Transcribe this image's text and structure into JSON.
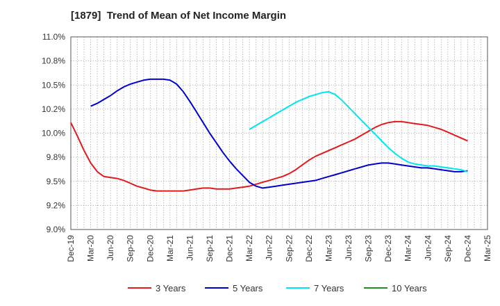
{
  "chart_data": {
    "type": "line",
    "title": "[1879]  Trend of Mean of Net Income Margin",
    "xlabel": "",
    "ylabel": "",
    "x_ticks": [
      "Dec-19",
      "Mar-20",
      "Jun-20",
      "Sep-20",
      "Dec-20",
      "Mar-21",
      "Jun-21",
      "Sep-21",
      "Dec-21",
      "Mar-22",
      "Jun-22",
      "Sep-22",
      "Dec-22",
      "Mar-23",
      "Jun-23",
      "Sep-23",
      "Dec-23",
      "Mar-24",
      "Jun-24",
      "Sep-24",
      "Dec-24",
      "Mar-25"
    ],
    "y_ticks": [
      "9.0%",
      "9.2%",
      "9.5%",
      "9.8%",
      "10.0%",
      "10.2%",
      "10.5%",
      "10.8%",
      "11.0%"
    ],
    "ylim": [
      9.0,
      11.0
    ],
    "grid": true,
    "legend_position": "bottom",
    "series": [
      {
        "name": "3 Years",
        "color": "#e31a1c",
        "points": [
          [
            "Dec-19",
            10.11
          ],
          [
            "Jan-20",
            9.97
          ],
          [
            "Feb-20",
            9.82
          ],
          [
            "Mar-20",
            9.69
          ],
          [
            "Apr-20",
            9.6
          ],
          [
            "May-20",
            9.55
          ],
          [
            "Jun-20",
            9.54
          ],
          [
            "Jul-20",
            9.53
          ],
          [
            "Aug-20",
            9.51
          ],
          [
            "Sep-20",
            9.48
          ],
          [
            "Oct-20",
            9.45
          ],
          [
            "Nov-20",
            9.43
          ],
          [
            "Dec-20",
            9.41
          ],
          [
            "Jan-21",
            9.4
          ],
          [
            "Feb-21",
            9.4
          ],
          [
            "Mar-21",
            9.4
          ],
          [
            "Apr-21",
            9.4
          ],
          [
            "May-21",
            9.4
          ],
          [
            "Jun-21",
            9.41
          ],
          [
            "Jul-21",
            9.42
          ],
          [
            "Aug-21",
            9.43
          ],
          [
            "Sep-21",
            9.43
          ],
          [
            "Oct-21",
            9.42
          ],
          [
            "Nov-21",
            9.42
          ],
          [
            "Dec-21",
            9.42
          ],
          [
            "Jan-22",
            9.43
          ],
          [
            "Feb-22",
            9.44
          ],
          [
            "Mar-22",
            9.45
          ],
          [
            "Apr-22",
            9.47
          ],
          [
            "May-22",
            9.49
          ],
          [
            "Jun-22",
            9.51
          ],
          [
            "Jul-22",
            9.53
          ],
          [
            "Aug-22",
            9.55
          ],
          [
            "Sep-22",
            9.58
          ],
          [
            "Oct-22",
            9.62
          ],
          [
            "Nov-22",
            9.67
          ],
          [
            "Dec-22",
            9.72
          ],
          [
            "Jan-23",
            9.76
          ],
          [
            "Feb-23",
            9.79
          ],
          [
            "Mar-23",
            9.82
          ],
          [
            "Apr-23",
            9.85
          ],
          [
            "May-23",
            9.88
          ],
          [
            "Jun-23",
            9.91
          ],
          [
            "Jul-23",
            9.94
          ],
          [
            "Aug-23",
            9.98
          ],
          [
            "Sep-23",
            10.02
          ],
          [
            "Oct-23",
            10.06
          ],
          [
            "Nov-23",
            10.09
          ],
          [
            "Dec-23",
            10.11
          ],
          [
            "Jan-24",
            10.12
          ],
          [
            "Feb-24",
            10.12
          ],
          [
            "Mar-24",
            10.11
          ],
          [
            "Apr-24",
            10.1
          ],
          [
            "May-24",
            10.09
          ],
          [
            "Jun-24",
            10.08
          ],
          [
            "Jul-24",
            10.06
          ],
          [
            "Aug-24",
            10.04
          ],
          [
            "Sep-24",
            10.01
          ],
          [
            "Oct-24",
            9.98
          ],
          [
            "Nov-24",
            9.95
          ],
          [
            "Dec-24",
            9.92
          ]
        ]
      },
      {
        "name": "5 Years",
        "color": "#0000cc",
        "points": [
          [
            "Dec-19",
            null
          ],
          [
            "Jan-20",
            null
          ],
          [
            "Feb-20",
            null
          ],
          [
            "Mar-20",
            null
          ],
          [
            "Apr-20",
            null
          ],
          [
            "May-20",
            null
          ],
          [
            "Jun-20",
            null
          ],
          [
            "Jul-20",
            null
          ],
          [
            "Aug-20",
            null
          ],
          [
            "Sep-20",
            null
          ],
          [
            "Oct-20",
            null
          ],
          [
            "Nov-20",
            null
          ],
          [
            "Dec-20",
            null
          ],
          [
            "Jan-21",
            null
          ],
          [
            "Feb-21",
            null
          ],
          [
            "Mar-21",
            null
          ],
          [
            "Apr-21",
            null
          ],
          [
            "May-21",
            null
          ],
          [
            "Jun-21",
            null
          ],
          [
            "Jul-21",
            null
          ],
          [
            "Aug-21",
            null
          ],
          [
            "Sep-21",
            null
          ],
          [
            "Oct-21",
            null
          ],
          [
            "Nov-21",
            null
          ],
          [
            "Dec-21",
            null
          ],
          [
            "Jan-22",
            null
          ],
          [
            "Feb-22",
            null
          ],
          [
            "Mar-22",
            null
          ],
          [
            "Apr-22",
            null
          ],
          [
            "May-22",
            null
          ],
          [
            "Jun-22",
            null
          ],
          [
            "Jul-22",
            null
          ],
          [
            "Aug-22",
            null
          ],
          [
            "Sep-22",
            null
          ],
          [
            "Oct-22",
            null
          ],
          [
            "Nov-22",
            null
          ],
          [
            "Dec-22",
            null
          ],
          [
            "Jan-23",
            null
          ],
          [
            "Feb-23",
            null
          ],
          [
            "Mar-23",
            null
          ],
          [
            "Apr-23",
            null
          ],
          [
            "May-23",
            null
          ],
          [
            "Jun-23",
            null
          ],
          [
            "Jul-23",
            null
          ],
          [
            "Aug-23",
            null
          ],
          [
            "Sep-23",
            null
          ],
          [
            "Oct-23",
            null
          ],
          [
            "Nov-23",
            null
          ],
          [
            "Dec-23",
            null
          ],
          [
            "Jan-24",
            null
          ],
          [
            "Feb-24",
            null
          ],
          [
            "Mar-24",
            null
          ],
          [
            "Apr-24",
            null
          ],
          [
            "May-24",
            null
          ],
          [
            "Jun-24",
            null
          ],
          [
            "Jul-24",
            null
          ],
          [
            "Aug-24",
            null
          ],
          [
            "Sep-24",
            null
          ],
          [
            "Oct-24",
            null
          ],
          [
            "Nov-24",
            null
          ],
          [
            "Dec-24",
            null
          ]
        ]
      },
      {
        "name": "7 Years",
        "color": "#00e5ee",
        "points": [
          [
            "Mar-22",
            10.04
          ],
          [
            "Apr-22",
            10.08
          ],
          [
            "May-22",
            10.12
          ],
          [
            "Jun-22",
            10.16
          ],
          [
            "Jul-22",
            10.2
          ],
          [
            "Aug-22",
            10.24
          ],
          [
            "Sep-22",
            10.28
          ],
          [
            "Oct-22",
            10.32
          ],
          [
            "Nov-22",
            10.35
          ],
          [
            "Dec-22",
            10.38
          ],
          [
            "Jan-23",
            10.4
          ],
          [
            "Feb-23",
            10.42
          ],
          [
            "Mar-23",
            10.43
          ],
          [
            "Apr-23",
            10.4
          ],
          [
            "May-23",
            10.34
          ],
          [
            "Jun-23",
            10.27
          ],
          [
            "Jul-23",
            10.2
          ],
          [
            "Aug-23",
            10.13
          ],
          [
            "Sep-23",
            10.06
          ],
          [
            "Oct-23",
            9.99
          ],
          [
            "Nov-23",
            9.92
          ],
          [
            "Dec-23",
            9.85
          ],
          [
            "Jan-24",
            9.79
          ],
          [
            "Feb-24",
            9.74
          ],
          [
            "Mar-24",
            9.7
          ],
          [
            "Apr-24",
            9.68
          ],
          [
            "May-24",
            9.67
          ],
          [
            "Jun-24",
            9.66
          ],
          [
            "Jul-24",
            9.66
          ],
          [
            "Aug-24",
            9.65
          ],
          [
            "Sep-24",
            9.64
          ],
          [
            "Oct-24",
            9.63
          ],
          [
            "Nov-24",
            9.62
          ],
          [
            "Dec-24",
            9.6
          ]
        ]
      },
      {
        "name": "10 Years",
        "color": "#228b22",
        "points": []
      }
    ]
  },
  "five_year_points": [
    [
      "Mar-20",
      10.28
    ],
    [
      "Apr-20",
      10.31
    ],
    [
      "May-20",
      10.35
    ],
    [
      "Jun-20",
      10.39
    ],
    [
      "Jul-20",
      10.44
    ],
    [
      "Aug-20",
      10.48
    ],
    [
      "Sep-20",
      10.51
    ],
    [
      "Oct-20",
      10.53
    ],
    [
      "Nov-20",
      10.55
    ],
    [
      "Dec-20",
      10.56
    ],
    [
      "Jan-21",
      10.56
    ],
    [
      "Feb-21",
      10.56
    ],
    [
      "Mar-21",
      10.55
    ],
    [
      "Apr-21",
      10.51
    ],
    [
      "May-21",
      10.43
    ],
    [
      "Jun-21",
      10.33
    ],
    [
      "Jul-21",
      10.22
    ],
    [
      "Aug-21",
      10.11
    ],
    [
      "Sep-21",
      10.0
    ],
    [
      "Oct-21",
      9.9
    ],
    [
      "Nov-21",
      9.8
    ],
    [
      "Dec-21",
      9.71
    ],
    [
      "Jan-22",
      9.63
    ],
    [
      "Feb-22",
      9.56
    ],
    [
      "Mar-22",
      9.49
    ],
    [
      "Apr-22",
      9.45
    ],
    [
      "May-22",
      9.43
    ],
    [
      "Jun-22",
      9.44
    ],
    [
      "Jul-22",
      9.45
    ],
    [
      "Aug-22",
      9.46
    ],
    [
      "Sep-22",
      9.47
    ],
    [
      "Oct-22",
      9.48
    ],
    [
      "Nov-22",
      9.49
    ],
    [
      "Dec-22",
      9.5
    ],
    [
      "Jan-23",
      9.51
    ],
    [
      "Feb-23",
      9.53
    ],
    [
      "Mar-23",
      9.55
    ],
    [
      "Apr-23",
      9.57
    ],
    [
      "May-23",
      9.59
    ],
    [
      "Jun-23",
      9.61
    ],
    [
      "Jul-23",
      9.63
    ],
    [
      "Aug-23",
      9.65
    ],
    [
      "Sep-23",
      9.67
    ],
    [
      "Oct-23",
      9.68
    ],
    [
      "Nov-23",
      9.69
    ],
    [
      "Dec-23",
      9.69
    ],
    [
      "Jan-24",
      9.68
    ],
    [
      "Feb-24",
      9.67
    ],
    [
      "Mar-24",
      9.66
    ],
    [
      "Apr-24",
      9.65
    ],
    [
      "May-24",
      9.64
    ],
    [
      "Jun-24",
      9.64
    ],
    [
      "Jul-24",
      9.63
    ],
    [
      "Aug-24",
      9.62
    ],
    [
      "Sep-24",
      9.61
    ],
    [
      "Oct-24",
      9.6
    ],
    [
      "Nov-24",
      9.6
    ],
    [
      "Dec-24",
      9.61
    ]
  ]
}
